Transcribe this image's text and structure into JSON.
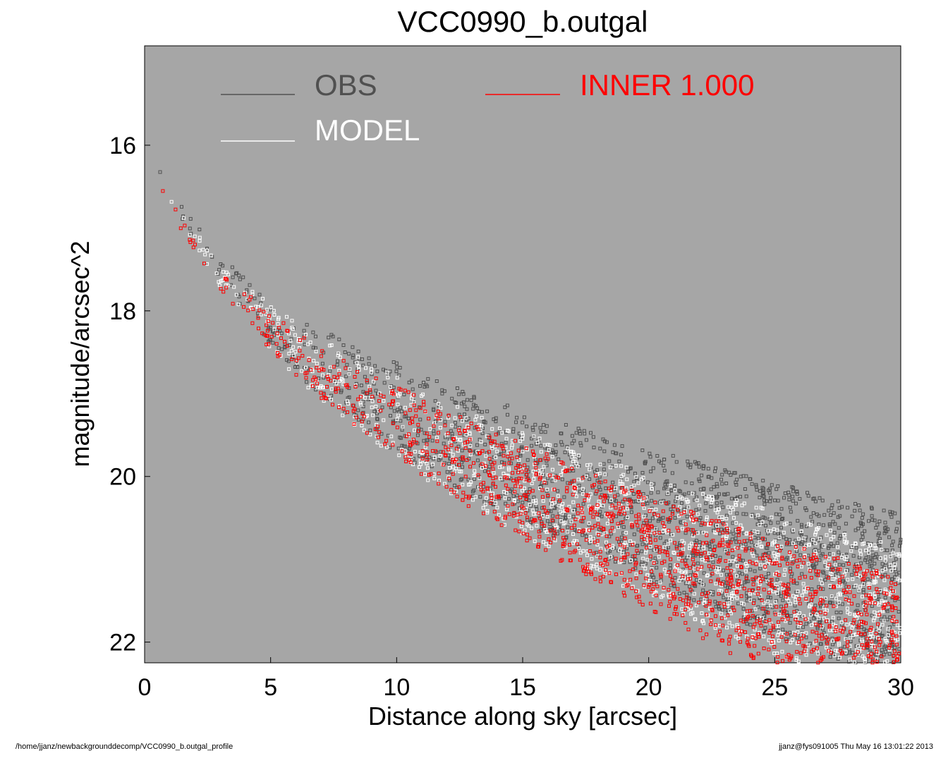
{
  "chart_data": {
    "type": "scatter",
    "title": "VCC0990_b.outgal",
    "xlabel": "Distance along sky [arcsec]",
    "ylabel": "magnitude/arcsec^2",
    "xlim": [
      0,
      30
    ],
    "ylim": [
      22.25,
      14.8
    ],
    "y_inverted": true,
    "xticks": [
      0,
      5,
      10,
      15,
      20,
      25,
      30
    ],
    "yticks": [
      16,
      18,
      20,
      22
    ],
    "plot_background": "#a6a6a6",
    "grid": false,
    "legend_placement": "top",
    "legend": [
      {
        "label": "OBS",
        "color": "#505050"
      },
      {
        "label": "INNER  1.000",
        "color": "#ff0000"
      },
      {
        "label": "MODEL",
        "color": "#ffffff"
      }
    ],
    "series": [
      {
        "name": "OBS",
        "color": "#505050",
        "marker": "open-square",
        "profile_x": [
          0.2,
          0.5,
          1,
          2,
          3,
          4,
          5,
          6,
          7,
          8,
          9,
          10,
          12,
          14,
          16,
          18,
          20,
          22,
          24,
          26,
          28,
          30
        ],
        "profile_y": [
          16.0,
          16.25,
          16.6,
          17.1,
          17.5,
          17.85,
          18.15,
          18.4,
          18.62,
          18.83,
          19.02,
          19.18,
          19.48,
          19.75,
          20.0,
          20.24,
          20.47,
          20.68,
          20.9,
          21.1,
          21.3,
          21.5
        ],
        "scatter_halfwidth": [
          0.05,
          0.07,
          0.1,
          0.15,
          0.2,
          0.25,
          0.3,
          0.35,
          0.4,
          0.45,
          0.5,
          0.55,
          0.6,
          0.65,
          0.7,
          0.75,
          0.8,
          0.85,
          0.9,
          0.95,
          1.0,
          1.05
        ]
      },
      {
        "name": "MODEL",
        "color": "#ffffff",
        "marker": "open-square",
        "profile_x": [
          0.2,
          0.5,
          1,
          2,
          3,
          4,
          5,
          6,
          7,
          8,
          9,
          10,
          12,
          14,
          16,
          18,
          20,
          22,
          24,
          26,
          28,
          30
        ],
        "profile_y": [
          16.1,
          16.3,
          16.65,
          17.15,
          17.55,
          17.9,
          18.2,
          18.47,
          18.7,
          18.9,
          19.1,
          19.3,
          19.65,
          19.95,
          20.22,
          20.48,
          20.72,
          20.95,
          21.18,
          21.4,
          21.62,
          21.85
        ],
        "scatter_halfwidth": [
          0.04,
          0.05,
          0.08,
          0.12,
          0.17,
          0.22,
          0.27,
          0.32,
          0.37,
          0.42,
          0.46,
          0.5,
          0.55,
          0.6,
          0.65,
          0.7,
          0.75,
          0.8,
          0.85,
          0.9,
          0.95,
          1.0
        ]
      },
      {
        "name": "INNER  1.000",
        "color": "#ff0000",
        "marker": "open-square",
        "profile_x": [
          0.3,
          0.5,
          1,
          2,
          3,
          4,
          5,
          6,
          7,
          8,
          9,
          10,
          12,
          14,
          16,
          18,
          20,
          22,
          24,
          26,
          28,
          30
        ],
        "profile_y": [
          16.35,
          16.4,
          16.72,
          17.2,
          17.6,
          17.95,
          18.25,
          18.52,
          18.75,
          18.96,
          19.15,
          19.34,
          19.7,
          20.02,
          20.33,
          20.63,
          20.92,
          21.2,
          21.45,
          21.7,
          21.93,
          22.15
        ],
        "scatter_halfwidth": [
          0.03,
          0.04,
          0.06,
          0.1,
          0.14,
          0.18,
          0.22,
          0.27,
          0.32,
          0.36,
          0.4,
          0.44,
          0.5,
          0.55,
          0.6,
          0.65,
          0.7,
          0.75,
          0.8,
          0.85,
          0.9,
          0.95
        ]
      }
    ]
  },
  "footer": {
    "left": "/home/jjanz/newbackgrounddecomp/VCC0990_b.outgal_profile",
    "right": "jjanz@fys091005  Thu May 16 13:01:22 2013"
  }
}
